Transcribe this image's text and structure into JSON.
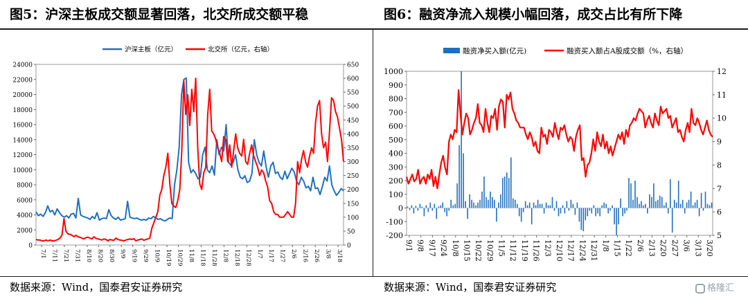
{
  "header": {
    "left_title": "图5：沪深主板成交额显著回落，北交所成交额平稳",
    "right_title": "图6：融资净流入规模小幅回落，成交占比有所下降"
  },
  "footer": {
    "left_source": "数据来源：Wind，国泰君安证券研究",
    "right_source": "数据来源：Wind，国泰君安证券研究"
  },
  "watermark": {
    "text": "格隆汇"
  },
  "colors": {
    "blue": "#1f6fbf",
    "red": "#ff0000"
  },
  "chart_data": [
    {
      "type": "line",
      "legend_position": "top-center",
      "grid": false,
      "x_ticks": [
        "7/1",
        "7/11",
        "7/21",
        "7/31",
        "8/10",
        "8/20",
        "8/30",
        "9/9",
        "9/19",
        "9/29",
        "10/9",
        "10/19",
        "10/29",
        "11/8",
        "11/18",
        "11/28",
        "12/8",
        "12/18",
        "12/28",
        "1/7",
        "1/17",
        "1/27",
        "2/6",
        "2/16",
        "2/26",
        "3/8",
        "3/18"
      ],
      "y_left": {
        "ticks": [
          0,
          2000,
          4000,
          6000,
          8000,
          10000,
          12000,
          14000,
          16000,
          18000,
          20000,
          22000,
          24000
        ],
        "ylim": [
          0,
          24000
        ]
      },
      "y_right": {
        "ticks": [
          0,
          50,
          100,
          150,
          200,
          250,
          300,
          350,
          400,
          450,
          500,
          550,
          600,
          650
        ],
        "ylim": [
          0,
          650
        ]
      },
      "series": [
        {
          "name": "沪深主板（亿元）",
          "color": "#1f6fbf",
          "axis": "left",
          "x": [
            0,
            2,
            4,
            6,
            8,
            10,
            12,
            14,
            16,
            18,
            20,
            22,
            24,
            26,
            28,
            30,
            32,
            34,
            36,
            38,
            40,
            42,
            44,
            46,
            48,
            50,
            52,
            54,
            56,
            58,
            60,
            62,
            64,
            66,
            68,
            70,
            72,
            74,
            76,
            78,
            80,
            82,
            84,
            86,
            88,
            89,
            90,
            92,
            94,
            96,
            98,
            100,
            102,
            104,
            106,
            108,
            110,
            112,
            114,
            116,
            118,
            120,
            122,
            124,
            126,
            128,
            130,
            132,
            134,
            136,
            138,
            140,
            142,
            144,
            146,
            148,
            150,
            152,
            154,
            156,
            158,
            160,
            162,
            164,
            166,
            168,
            170,
            172,
            174,
            176,
            178,
            180,
            182,
            184,
            186,
            188,
            190,
            192,
            194,
            196,
            198,
            200,
            202,
            204,
            206,
            208,
            210,
            212,
            214,
            216,
            218,
            220,
            222,
            224,
            226,
            228,
            230,
            232,
            234,
            236,
            238,
            240,
            242,
            244,
            246,
            248,
            250,
            252,
            254,
            256,
            258,
            260
          ],
          "values": [
            4400,
            3900,
            4100,
            3800,
            4300,
            5200,
            4400,
            4600,
            4000,
            4800,
            4300,
            3900,
            3700,
            3900,
            3600,
            4100,
            4200,
            3600,
            6200,
            4000,
            3800,
            3700,
            3600,
            3400,
            3800,
            3500,
            4300,
            3300,
            3500,
            3600,
            3500,
            4700,
            3900,
            3600,
            3400,
            3700,
            3300,
            3400,
            3500,
            5800,
            3700,
            3600,
            3500,
            3600,
            3400,
            3300,
            3400,
            3300,
            3600,
            3500,
            3800,
            3600,
            3400,
            3500,
            3300,
            3200,
            3400,
            3600,
            3500,
            8000,
            10000,
            13000,
            20000,
            22000,
            22200,
            11000,
            9600,
            10000,
            9500,
            8800,
            9000,
            12000,
            13000,
            10000,
            9600,
            10500,
            9300,
            14000,
            12000,
            13000,
            12500,
            16000,
            11000,
            10600,
            11000,
            12000,
            10000,
            9000,
            8800,
            9200,
            8300,
            8500,
            9500,
            14000,
            12000,
            11000,
            10500,
            12500,
            10400,
            9000,
            10500,
            11000,
            9500,
            9700,
            9000,
            8700,
            9800,
            8800,
            9500,
            10200,
            9700,
            8500,
            8000,
            9000,
            8500,
            7600,
            7800,
            7200,
            9000,
            7500,
            7600,
            6700,
            7800,
            9000,
            8500,
            10500,
            8000,
            7200,
            6600,
            7000,
            7500,
            7200
          ],
          "note": ""
        },
        {
          "name": "北交所（亿元，右轴）",
          "color": "#ff0000",
          "axis": "right",
          "values_desc": ""
        }
      ],
      "right_series_values": [
        20,
        18,
        18,
        15,
        15,
        18,
        15,
        18,
        15,
        15,
        17,
        20,
        25,
        35,
        95,
        50,
        40,
        38,
        35,
        30,
        35,
        30,
        28,
        25,
        22,
        27,
        28,
        25,
        22,
        30,
        24,
        22,
        20,
        18,
        22,
        20,
        15,
        20,
        18,
        17,
        25,
        20,
        18,
        17,
        15,
        18,
        20,
        22,
        20,
        23,
        15,
        18,
        20,
        22,
        17,
        20,
        22,
        25,
        60,
        80,
        100,
        120,
        180,
        200,
        250,
        280,
        330,
        220,
        150,
        140,
        135,
        160,
        200,
        340,
        590,
        470,
        540,
        430,
        560,
        480,
        600,
        350,
        220,
        200,
        260,
        280,
        470,
        560,
        410,
        400,
        380,
        350,
        330,
        300,
        390,
        380,
        300,
        360,
        280,
        340,
        400,
        350,
        330,
        320,
        380,
        300,
        290,
        330,
        360,
        320,
        300,
        280,
        250,
        270,
        260,
        230,
        210,
        160,
        150,
        120,
        110,
        110,
        100,
        100,
        100,
        110,
        120,
        110,
        100,
        100,
        150,
        300,
        260,
        310,
        340,
        300,
        280,
        320,
        350,
        330,
        440,
        500,
        520,
        400,
        350,
        370,
        300,
        410,
        530,
        520,
        480,
        460,
        420,
        380,
        300
      ]
    },
    {
      "type": "bar+line",
      "legend_position": "top-center",
      "grid": false,
      "x_ticks": [
        "9/1",
        "9/8",
        "9/17",
        "9/24",
        "10/8",
        "10/15",
        "10/22",
        "10/29",
        "11/5",
        "11/12",
        "11/19",
        "11/26",
        "12/3",
        "12/10",
        "12/17",
        "12/24",
        "12/31",
        "1/8",
        "1/15",
        "1/22",
        "2/6",
        "2/13",
        "2/20",
        "2/27",
        "3/6",
        "3/13",
        "3/20"
      ],
      "y_left": {
        "ticks": [
          -200,
          -100,
          0,
          100,
          200,
          300,
          400,
          500,
          600,
          700,
          800,
          900,
          1000
        ],
        "ylim": [
          -200,
          1000
        ]
      },
      "y_right": {
        "ticks": [
          5,
          6,
          7,
          8,
          9,
          10,
          11,
          12
        ],
        "ylim": [
          5,
          12
        ]
      },
      "series": [
        {
          "name": "融资净买入额(亿元)",
          "color": "#1f6fbf",
          "axis": "left",
          "kind": "bar"
        },
        {
          "name": "融资买入额占A股成交额（%，右轴）",
          "color": "#ff0000",
          "axis": "right",
          "kind": "line"
        }
      ],
      "bar_values": [
        10,
        -15,
        20,
        -40,
        15,
        -20,
        30,
        10,
        -60,
        20,
        -30,
        40,
        -20,
        30,
        -80,
        10,
        20,
        40,
        -30,
        -60,
        -20,
        60,
        20,
        30,
        180,
        460,
        1000,
        400,
        50,
        -80,
        100,
        60,
        40,
        20,
        40,
        60,
        120,
        230,
        80,
        60,
        120,
        80,
        60,
        -100,
        40,
        100,
        220,
        230,
        260,
        220,
        370,
        70,
        60,
        30,
        -60,
        -100,
        -30,
        50,
        20,
        40,
        -120,
        40,
        20,
        60,
        30,
        30,
        -40,
        40,
        20,
        20,
        80,
        -20,
        50,
        -60,
        -40,
        20,
        -40,
        50,
        -20,
        60,
        30,
        -50,
        40,
        -100,
        -160,
        -170,
        -90,
        -60,
        -20,
        -40,
        20,
        -60,
        -40,
        -60,
        20,
        40,
        30,
        -40,
        -20,
        20,
        -120,
        -200,
        -120,
        70,
        -60,
        -40,
        -20,
        220,
        180,
        60,
        200,
        80,
        30,
        50,
        20,
        30,
        -40,
        100,
        80,
        180,
        50,
        60,
        90,
        80,
        20,
        40,
        -40,
        210,
        -180,
        60,
        40,
        200,
        30,
        60,
        -40,
        40,
        60,
        120,
        20,
        40,
        60,
        -60,
        110,
        -20,
        120,
        30,
        20,
        40
      ],
      "line_values": [
        7.5,
        7.2,
        7.4,
        7.6,
        7.3,
        7.4,
        7.8,
        7.2,
        7.4,
        7.5,
        7.2,
        7.6,
        7.4,
        7.8,
        7.1,
        7.5,
        7.0,
        7.6,
        8.1,
        8.4,
        7.9,
        7.6,
        9.0,
        9.3,
        9.1,
        9.5,
        9.4,
        11.2,
        10.2,
        9.3,
        9.8,
        10.2,
        10.0,
        9.3,
        9.5,
        9.8,
        10.0,
        10.6,
        9.8,
        9.7,
        9.4,
        10.4,
        9.8,
        9.4,
        10.1,
        10.0,
        10.4,
        9.5,
        10.5,
        10.8,
        10.7,
        9.6,
        11.0,
        10.8,
        11.1,
        10.4,
        10.2,
        9.9,
        9.8,
        9.6,
        9.6,
        9.6,
        9.3,
        9.1,
        9.4,
        9.2,
        8.8,
        9.0,
        8.6,
        8.5,
        9.6,
        9.2,
        9.3,
        8.9,
        9.5,
        9.4,
        9.2,
        9.8,
        9.4,
        9.1,
        9.6,
        9.5,
        9.7,
        9.3,
        9.0,
        9.2,
        9.1,
        8.6,
        9.2,
        9.5,
        9.7,
        8.2,
        8.3,
        7.5,
        8.0,
        8.1,
        8.5,
        9.1,
        8.6,
        9.4,
        9.0,
        8.8,
        9.3,
        8.7,
        9.0,
        8.5,
        8.8,
        8.4,
        8.7,
        9.0,
        9.3,
        9.1,
        9.4,
        8.9,
        9.5,
        9.2,
        9.7,
        9.8,
        10.0,
        9.9,
        10.2,
        10.4,
        10.3,
        10.2,
        9.6,
        9.9,
        10.1,
        9.8,
        9.6,
        10.2,
        9.9,
        9.7,
        10.5,
        10.2,
        10.3,
        10.4,
        10.0,
        10.1,
        9.6,
        9.8,
        10.0,
        9.4,
        9.5,
        9.2,
        9.0,
        9.5,
        9.8,
        9.4,
        10.4,
        9.8,
        9.7,
        10.0,
        9.8,
        9.5,
        9.3,
        9.6,
        9.9,
        9.5,
        9.3,
        9.2
      ]
    }
  ]
}
